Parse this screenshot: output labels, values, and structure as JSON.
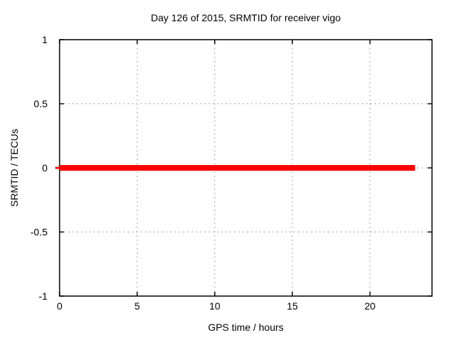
{
  "colors": {
    "background": "#ffffff",
    "axis": "#000000",
    "grid": "#a6a6a6",
    "series_red": "#ff0000",
    "text": "#000000"
  },
  "chart_data": {
    "type": "line",
    "title": "Day 126 of 2015, SRMTID for receiver vigo",
    "xlabel": "GPS time / hours",
    "ylabel": "SRMTID / TECUs",
    "xlim": [
      0,
      24
    ],
    "ylim": [
      -1,
      1
    ],
    "xticks": [
      0,
      5,
      10,
      15,
      20
    ],
    "xtick_labels": [
      "0",
      "5",
      "10",
      "15",
      "20"
    ],
    "yticks": [
      -1,
      -0.5,
      0,
      0.5,
      1
    ],
    "ytick_labels": [
      "-1",
      "-0.5",
      "0",
      "0.5",
      "1"
    ],
    "grid": true,
    "grid_style": "dotted",
    "legend": "none",
    "series": [
      {
        "name": "SRMTID",
        "color": "#ff0000",
        "linewidth": 8,
        "x": [
          0,
          22.9
        ],
        "y": [
          0,
          0
        ]
      }
    ]
  }
}
